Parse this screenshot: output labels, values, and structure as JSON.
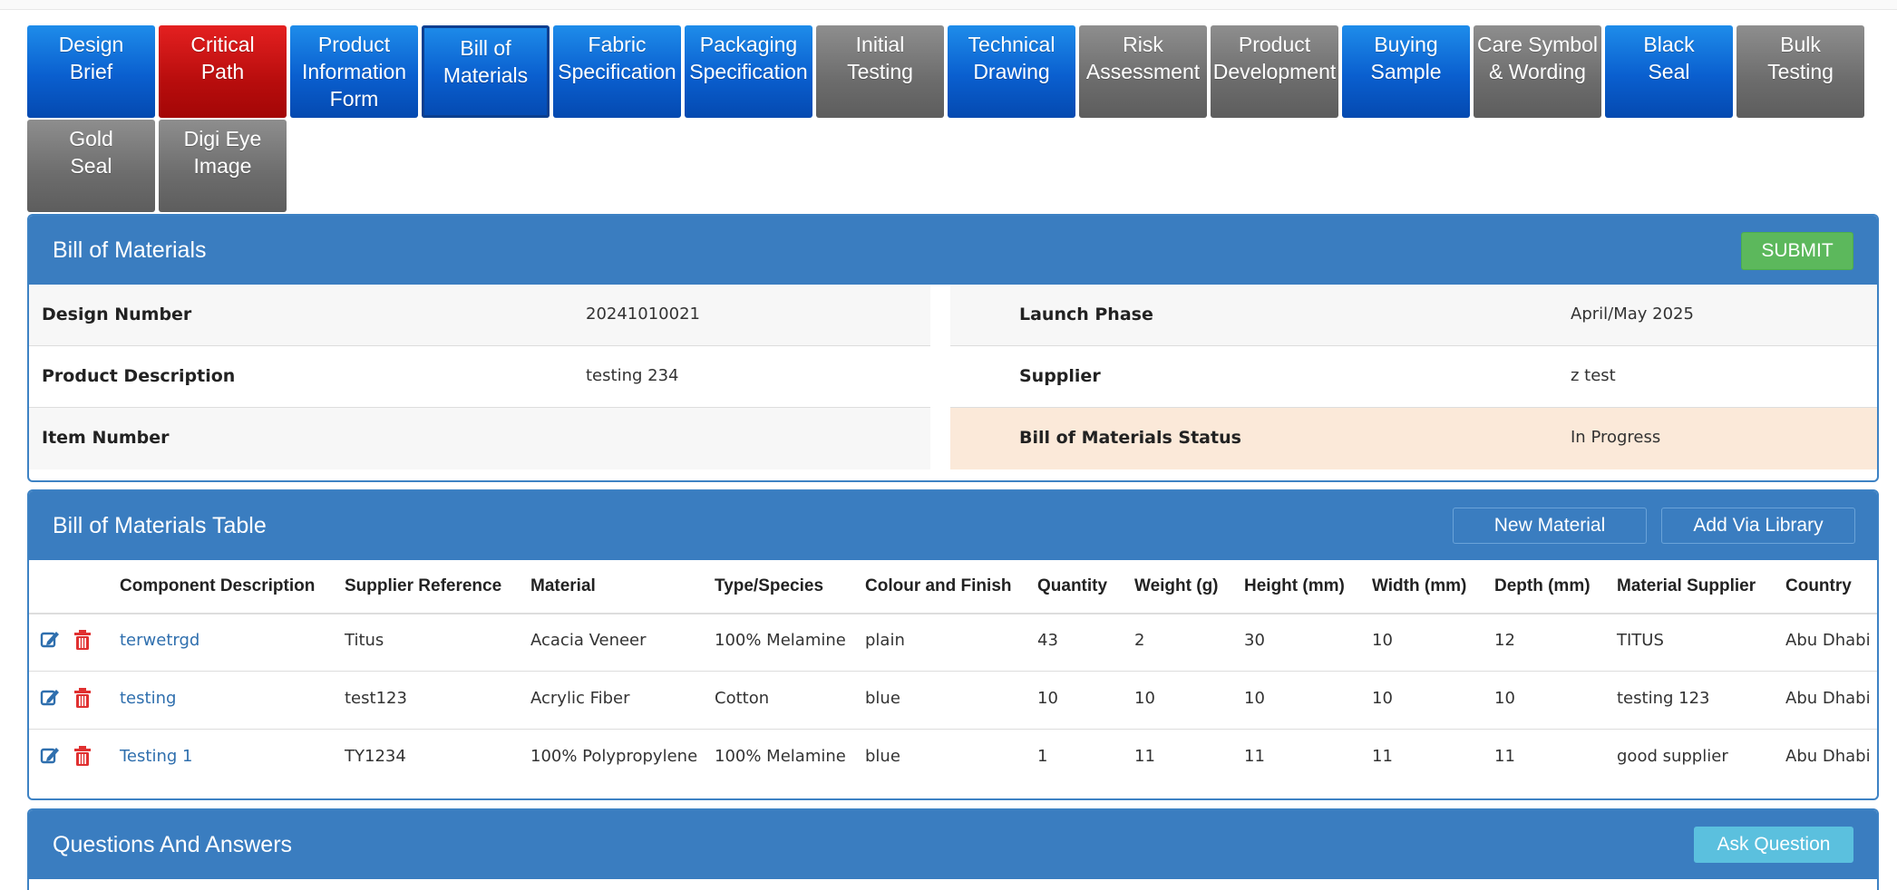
{
  "tabs": [
    {
      "label_l1": "Design",
      "label_l2": "Brief",
      "label_l3": "",
      "color": "blue"
    },
    {
      "label_l1": "Critical",
      "label_l2": "Path",
      "label_l3": "",
      "color": "red"
    },
    {
      "label_l1": "Product",
      "label_l2": "Information",
      "label_l3": "Form",
      "color": "blue"
    },
    {
      "label_l1": "Bill of",
      "label_l2": "Materials",
      "label_l3": "",
      "color": "blue",
      "active": true
    },
    {
      "label_l1": "Fabric",
      "label_l2": "Specification",
      "label_l3": "",
      "color": "blue"
    },
    {
      "label_l1": "Packaging",
      "label_l2": "Specification",
      "label_l3": "",
      "color": "blue"
    },
    {
      "label_l1": "Initial",
      "label_l2": "Testing",
      "label_l3": "",
      "color": "gray"
    },
    {
      "label_l1": "Technical",
      "label_l2": "Drawing",
      "label_l3": "",
      "color": "blue"
    },
    {
      "label_l1": "Risk",
      "label_l2": "Assessment",
      "label_l3": "",
      "color": "gray"
    },
    {
      "label_l1": "Product",
      "label_l2": "Development",
      "label_l3": "",
      "color": "gray"
    },
    {
      "label_l1": "Buying",
      "label_l2": "Sample",
      "label_l3": "",
      "color": "blue"
    },
    {
      "label_l1": "Care Symbol",
      "label_l2": "& Wording",
      "label_l3": "",
      "color": "gray"
    },
    {
      "label_l1": "Black",
      "label_l2": "Seal",
      "label_l3": "",
      "color": "blue"
    },
    {
      "label_l1": "Bulk",
      "label_l2": "Testing",
      "label_l3": "",
      "color": "gray"
    },
    {
      "label_l1": "Gold",
      "label_l2": "Seal",
      "label_l3": "",
      "color": "gray"
    },
    {
      "label_l1": "Digi Eye",
      "label_l2": "Image",
      "label_l3": "",
      "color": "gray"
    }
  ],
  "bom": {
    "title": "Bill of Materials",
    "submit_label": "SUBMIT",
    "design_number_label": "Design Number",
    "design_number": "20241010021",
    "product_description_label": "Product Description",
    "product_description": "testing 234",
    "item_number_label": "Item Number",
    "item_number": "",
    "launch_phase_label": "Launch Phase",
    "launch_phase": "April/May 2025",
    "supplier_label": "Supplier",
    "supplier": "z test",
    "status_label": "Bill of Materials Status",
    "status": "In Progress"
  },
  "table": {
    "title": "Bill of Materials Table",
    "new_material_label": "New Material",
    "add_via_library_label": "Add Via Library",
    "columns": {
      "component": "Component Description",
      "supplier_ref": "Supplier Reference",
      "material": "Material",
      "type": "Type/Species",
      "colour": "Colour and Finish",
      "quantity": "Quantity",
      "weight": "Weight (g)",
      "height": "Height (mm)",
      "width": "Width (mm)",
      "depth": "Depth (mm)",
      "material_supplier": "Material Supplier",
      "country": "Country"
    },
    "rows": [
      {
        "component": "terwetrgd",
        "supplier_ref": "Titus",
        "material": "Acacia Veneer",
        "type": "100% Melamine",
        "colour": "plain",
        "quantity": "43",
        "weight": "2",
        "height": "30",
        "width": "10",
        "depth": "12",
        "material_supplier": "TITUS",
        "country": "Abu Dhabi"
      },
      {
        "component": "testing",
        "supplier_ref": "test123",
        "material": "Acrylic Fiber",
        "type": "Cotton",
        "colour": "blue",
        "quantity": "10",
        "weight": "10",
        "height": "10",
        "width": "10",
        "depth": "10",
        "material_supplier": "testing 123",
        "country": "Abu Dhabi"
      },
      {
        "component": "Testing 1",
        "supplier_ref": "TY1234",
        "material": "100% Polypropylene",
        "type": "100% Melamine",
        "colour": "blue",
        "quantity": "1",
        "weight": "11",
        "height": "11",
        "width": "11",
        "depth": "11",
        "material_supplier": "good supplier",
        "country": "Abu Dhabi"
      }
    ]
  },
  "qa": {
    "title": "Questions And Answers",
    "ask_label": "Ask Question"
  },
  "icons": {
    "edit": "edit-icon",
    "delete": "trash-icon"
  },
  "colors": {
    "tab_blue": "#0a5fcf",
    "tab_red": "#b80d0d",
    "tab_gray": "#6c6c6c",
    "panel_head": "#3a7dc0",
    "submit": "#5cb85c",
    "ask": "#5bc0de",
    "status_highlight": "#fbe9d9",
    "link": "#2f6fae"
  }
}
